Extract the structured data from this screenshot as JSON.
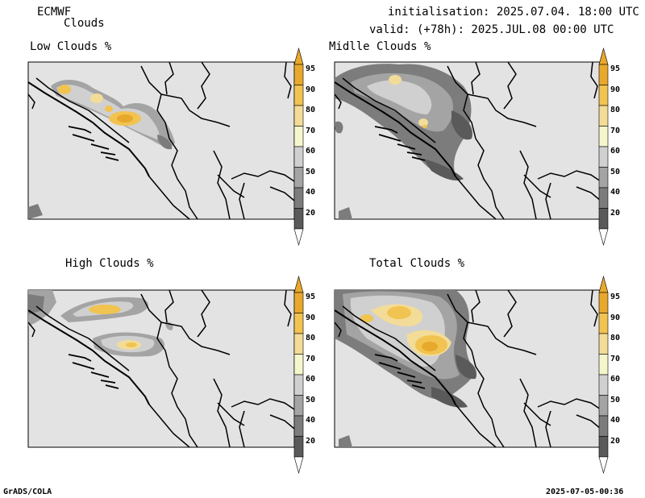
{
  "header": {
    "model": "ECMWF",
    "product": "Clouds",
    "init_line": "initialisation: 2025.07.04. 18:00 UTC",
    "valid_line": "valid: (+78h): 2025.JUL.08 00:00 UTC"
  },
  "panels": [
    {
      "title": "Low Clouds %"
    },
    {
      "title": "Midlle Clouds %"
    },
    {
      "title": "High Clouds %"
    },
    {
      "title": "Total Clouds %"
    }
  ],
  "colorbar": {
    "labels": [
      "95",
      "90",
      "80",
      "70",
      "60",
      "50",
      "40",
      "20"
    ],
    "colors": [
      "#e8a82c",
      "#f1c350",
      "#f3dc98",
      "#f6f6cc",
      "#d0d0d0",
      "#a4a4a4",
      "#7c7c7c",
      "#5a5a5a"
    ],
    "top_color": "#e8a82c",
    "bottom_color": "#ffffff"
  },
  "footer": {
    "left": "GrADS/COLA",
    "right": "2025-07-05-00:36"
  },
  "map_background": "#e3e3e3"
}
